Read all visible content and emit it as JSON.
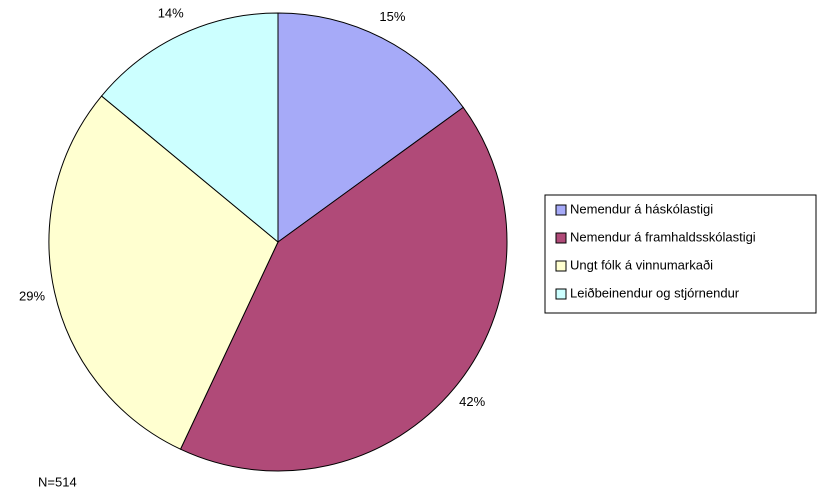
{
  "chart_data": {
    "type": "pie",
    "categories": [
      "Nemendur á háskólastigi",
      "Nemendur á framhaldsskólastigi",
      "Ungt fólk á vinnumarkaði",
      "Leiðbeinendur og stjórnendur"
    ],
    "values": [
      15,
      42,
      29,
      14
    ],
    "value_labels": [
      "15%",
      "42%",
      "29%",
      "14%"
    ],
    "colors": [
      "#a6aaf8",
      "#b04a78",
      "#ffffd0",
      "#ccffff"
    ],
    "annotation": "N=514",
    "legend": "right"
  }
}
